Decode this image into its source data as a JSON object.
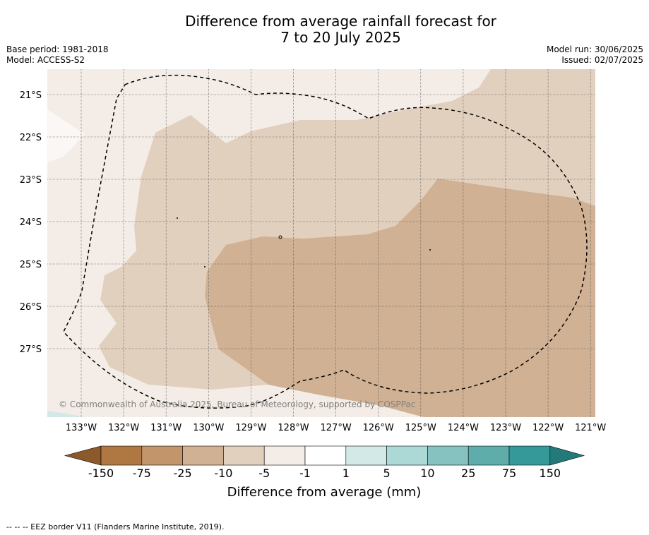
{
  "title": {
    "line1": "Difference from average rainfall forecast for",
    "line2": "7 to 20 July 2025"
  },
  "meta": {
    "base_period": "Base period: 1981-2018",
    "model": "Model: ACCESS-S2",
    "model_run": "Model run: 30/06/2025",
    "issued": "Issued: 02/07/2025"
  },
  "map": {
    "lat_labels": [
      "21°S",
      "22°S",
      "23°S",
      "24°S",
      "25°S",
      "26°S",
      "27°S"
    ],
    "lon_labels": [
      "133°W",
      "132°W",
      "131°W",
      "130°W",
      "129°W",
      "128°W",
      "127°W",
      "126°W",
      "125°W",
      "124°W",
      "123°W",
      "122°W",
      "121°W"
    ],
    "credit": "© Commonwealth of Australia 2025, Bureau of Meteorology, supported by COSPPac",
    "zone_colors": {
      "light": "#f4ede7",
      "medium": "#e2d0bf",
      "dark": "#d0b194"
    }
  },
  "colorbar": {
    "title": "Difference from average (mm)",
    "tick_labels": [
      "-150",
      "-75",
      "-25",
      "-10",
      "-5",
      "-1",
      "1",
      "5",
      "10",
      "25",
      "75",
      "150"
    ],
    "colors": [
      "#8c5a2a",
      "#af7843",
      "#c2956b",
      "#d0b194",
      "#e2d0bf",
      "#f4ede7",
      "#ffffff",
      "#d3e9e7",
      "#acd8d6",
      "#86c2c0",
      "#5eadab",
      "#35999a",
      "#227a7b"
    ]
  },
  "footer": {
    "note": "--  --  -- EEZ border V11 (Flanders Marine Institute, 2019)."
  }
}
